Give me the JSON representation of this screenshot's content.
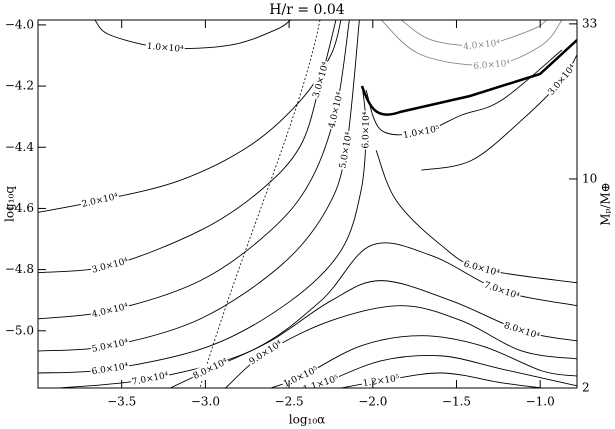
{
  "chart_data": {
    "type": "contour",
    "title": "H/r = 0.04",
    "x_label": "log₁₀α",
    "y_label": "log₁₀q",
    "y2_label": "Mₚ/M⊕",
    "xlim": [
      -4.0,
      -0.78
    ],
    "ylim": [
      -5.187,
      -3.984
    ],
    "xticks": [
      {
        "value": -3.5,
        "label": "−3.5"
      },
      {
        "value": -3,
        "label": "−3.0"
      },
      {
        "value": -2.5,
        "label": "−2.5"
      },
      {
        "value": -2,
        "label": "−2.0"
      },
      {
        "value": -1.5,
        "label": "−1.5"
      },
      {
        "value": -1,
        "label": "−1.0"
      }
    ],
    "yticks": [
      {
        "value": -4,
        "label": "−4.0"
      },
      {
        "value": -4.2,
        "label": "−4.2"
      },
      {
        "value": -4.4,
        "label": "−4.4"
      },
      {
        "value": -4.6,
        "label": "−4.6"
      },
      {
        "value": -4.8,
        "label": "−4.8"
      },
      {
        "value": -5,
        "label": "−5.0"
      }
    ],
    "y2lim": [
      2,
      34
    ],
    "y2ticks": [
      2,
      10,
      33
    ],
    "y2scale": "log",
    "contours": [
      {
        "level": 10000,
        "label": "1.0×10⁴",
        "color": "#000000",
        "x": [
          -3.66,
          -3.57,
          -3.24,
          -2.85,
          -2.58,
          -2.49
        ],
        "y": [
          -3.984,
          -4.033,
          -4.075,
          -4.066,
          -4.016,
          -3.984
        ]
      },
      {
        "level": 20000,
        "label": "2.0×10⁴",
        "color": "#000000",
        "x": [
          -4.0,
          -3.63,
          -3.15,
          -2.73,
          -2.43,
          -2.25,
          -2.19
        ],
        "y": [
          -4.613,
          -4.574,
          -4.508,
          -4.393,
          -4.246,
          -4.098,
          -3.984
        ]
      },
      {
        "level": 30000,
        "label": "3.0×10⁴",
        "color": "#000000",
        "x": [
          -4.0,
          -3.57,
          -3.03,
          -2.67,
          -2.43,
          -2.31,
          -2.22
        ],
        "y": [
          -4.81,
          -4.787,
          -4.672,
          -4.541,
          -4.393,
          -4.18,
          -3.984
        ]
      },
      {
        "level": 40000,
        "label": "4.0×10⁴",
        "color": "#000000",
        "x": [
          -4.0,
          -3.57,
          -3.03,
          -2.61,
          -2.37,
          -2.22,
          -2.14
        ],
        "y": [
          -4.961,
          -4.934,
          -4.836,
          -4.672,
          -4.508,
          -4.279,
          -3.984
        ]
      },
      {
        "level": 50000,
        "label": "5.0×10⁴",
        "color": "#000000",
        "x": [
          -4.0,
          -3.57,
          -3.03,
          -2.55,
          -2.28,
          -2.16,
          -2.08
        ],
        "y": [
          -5.066,
          -5.049,
          -4.961,
          -4.787,
          -4.607,
          -4.41,
          -3.984
        ]
      },
      {
        "level": 60000,
        "label": "6.0×10⁴",
        "color": "#000000",
        "x": [
          -4.0,
          -3.57,
          -2.97,
          -2.49,
          -2.19,
          -2.07,
          -2.04,
          -2.06
        ],
        "y": [
          -5.138,
          -5.125,
          -5.049,
          -4.902,
          -4.738,
          -4.541,
          -4.344,
          -4.213
        ]
      },
      {
        "level": 70000,
        "label": "7.0×10⁴",
        "color": "#000000",
        "x": [
          -3.87,
          -3.33,
          -2.73,
          -2.31,
          -2.01,
          -1.65,
          -1.23,
          -0.78
        ],
        "y": [
          -5.187,
          -5.157,
          -5.066,
          -4.902,
          -4.721,
          -4.754,
          -4.869,
          -4.918
        ]
      },
      {
        "level": 60000,
        "label": "6.0×10⁴",
        "color": "#000000",
        "x": [
          -1.98,
          -1.86,
          -1.59,
          -1.35,
          -0.78
        ],
        "y": [
          -4.41,
          -4.574,
          -4.721,
          -4.797,
          -4.843
        ]
      },
      {
        "level": 80000,
        "label": "8.0×10⁴",
        "color": "#000000",
        "x": [
          -3.21,
          -2.97,
          -2.61,
          -2.25,
          -1.95,
          -1.53,
          -1.11,
          -0.78
        ],
        "y": [
          -5.187,
          -5.125,
          -5.033,
          -4.902,
          -4.836,
          -4.902,
          -5.0,
          -5.033
        ]
      },
      {
        "level": 90000,
        "label": "9.0×10⁴",
        "color": "#000000",
        "x": [
          -2.88,
          -2.64,
          -2.25,
          -1.83,
          -1.47,
          -1.11,
          -0.78
        ],
        "y": [
          -5.187,
          -5.072,
          -4.967,
          -4.918,
          -4.967,
          -5.066,
          -5.092
        ]
      },
      {
        "level": 100000,
        "label": "1.0×10⁵",
        "color": "#000000",
        "x": [
          -2.61,
          -2.43,
          -2.07,
          -1.71,
          -1.35,
          -0.99,
          -0.78
        ],
        "y": [
          -5.187,
          -5.151,
          -5.049,
          -5.016,
          -5.049,
          -5.131,
          -5.148
        ]
      },
      {
        "level": 110000,
        "label": "1.1×10⁵",
        "color": "#000000",
        "x": [
          -2.43,
          -2.31,
          -1.95,
          -1.59,
          -1.23,
          -0.78
        ],
        "y": [
          -5.187,
          -5.174,
          -5.098,
          -5.082,
          -5.125,
          -5.18
        ]
      },
      {
        "level": 120000,
        "label": "1.2×10⁵",
        "color": "#000000",
        "x": [
          -2.19,
          -1.95,
          -1.59,
          -1.23,
          -0.99
        ],
        "y": [
          -5.187,
          -5.164,
          -5.138,
          -5.17,
          -5.187
        ]
      },
      {
        "level": 30000,
        "label": "3.0×10⁴",
        "color": "#000000",
        "x": [
          -1.71,
          -1.41,
          -1.11,
          -0.87,
          -0.78
        ],
        "y": [
          -4.475,
          -4.443,
          -4.311,
          -4.18,
          -4.098
        ]
      },
      {
        "level": 40000,
        "label": "4.0×10⁴",
        "color": "#888888",
        "x": [
          -1.83,
          -1.65,
          -1.35,
          -1.05,
          -0.96
        ],
        "y": [
          -3.984,
          -4.049,
          -4.066,
          -4.016,
          -3.984
        ]
      },
      {
        "level": 60000,
        "label": "6.0×10⁴",
        "color": "#888888",
        "x": [
          -1.95,
          -1.71,
          -1.29,
          -0.99,
          -0.87
        ],
        "y": [
          -3.984,
          -4.098,
          -4.131,
          -4.066,
          -3.984
        ]
      },
      {
        "level": 100000,
        "label": "1.0×10⁵",
        "color": "#000000",
        "x": [
          -2.04,
          -1.95,
          -1.71,
          -1.47,
          -1.23,
          -0.87
        ],
        "y": [
          -4.213,
          -4.344,
          -4.351,
          -4.295,
          -4.246,
          -4.082
        ]
      }
    ]
  }
}
